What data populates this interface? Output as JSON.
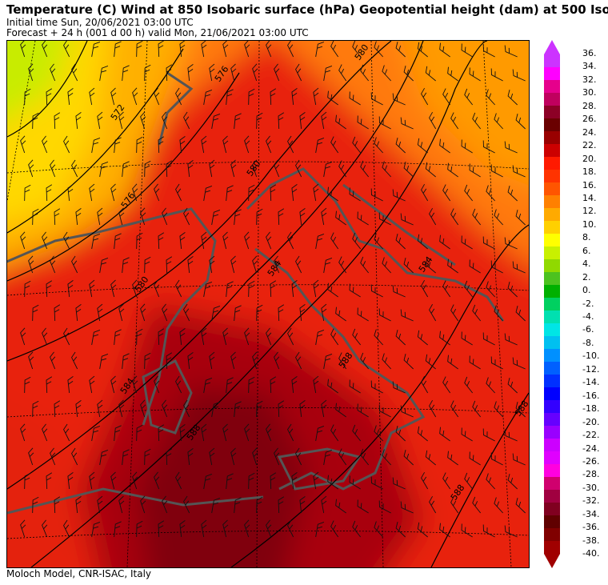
{
  "header": {
    "title": "Temperature (C) Wind  at 850 Isobaric surface (hPa) Geopotential height (dam)  at 500 Iso",
    "initial_time": "Initial time  Sun, 20/06/2021  03:00 UTC",
    "forecast": "Forecast  +  24 h  (001 d 00 h)  valid Mon, 21/06/2021 03:00 UTC"
  },
  "footer": {
    "credit": "Moloch Model, CNR-ISAC, Italy"
  },
  "contour_labels": [
    "572",
    "576",
    "580",
    "580",
    "584",
    "584",
    "588",
    "588",
    "588",
    "580",
    "584",
    "588",
    "576"
  ],
  "legend": {
    "labels": [
      "36.",
      "34.",
      "32.",
      "30.",
      "28.",
      "26.",
      "24.",
      "22.",
      "20.",
      "18.",
      "16.",
      "14.",
      "12.",
      "10.",
      "8.",
      "6.",
      "4.",
      "2.",
      "0.",
      "-2.",
      "-4.",
      "-6.",
      "-8.",
      "-10.",
      "-12.",
      "-14.",
      "-16.",
      "-18.",
      "-20.",
      "-22.",
      "-24.",
      "-26.",
      "-28.",
      "-30.",
      "-32.",
      "-34.",
      "-36.",
      "-38.",
      "-40."
    ],
    "colors": [
      "#cc33ff",
      "#ff00ff",
      "#e6008c",
      "#c0005e",
      "#8c0026",
      "#6a0000",
      "#990000",
      "#cc0000",
      "#ff1a00",
      "#ff3300",
      "#ff5500",
      "#ff8000",
      "#ffaa00",
      "#ffd000",
      "#ffff00",
      "#c8f000",
      "#90d900",
      "#4cc21f",
      "#00b000",
      "#00d060",
      "#00e0b0",
      "#00e5e5",
      "#00c0f0",
      "#0090ff",
      "#0060ff",
      "#0030ff",
      "#0000ff",
      "#3300ff",
      "#6600ff",
      "#9900ff",
      "#cc00ff",
      "#e000ff",
      "#ff00e0",
      "#d0006e",
      "#a00040",
      "#800020",
      "#600000",
      "#800000",
      "#a00000"
    ]
  },
  "colors": {
    "hot": "#8a0008",
    "warm": "#e41a0a",
    "mild": "#ff7a10",
    "cool": "#ffd000",
    "cold": "#c8ec00",
    "coast": "#555555"
  }
}
